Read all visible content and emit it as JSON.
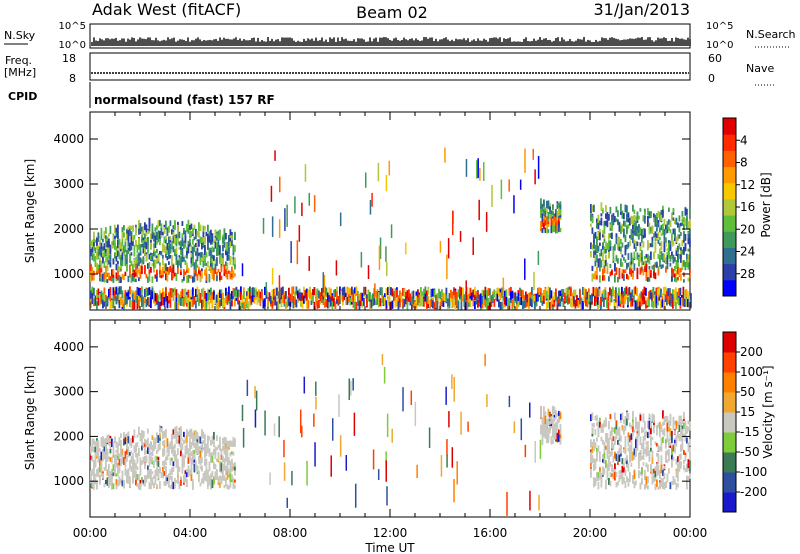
{
  "header": {
    "station": "Adak West (fitACF)",
    "beam": "Beam 02",
    "date": "31/Jan/2013"
  },
  "top_panels": {
    "nsky_label": "N.Sky",
    "nsearch_label": "N.Search",
    "freq_label_1": "Freq.",
    "freq_label_2": "[MHz]",
    "nave_label": "Nave",
    "cpid_label": "CPID",
    "cpid_value": "normalsound (fast) 157 RF",
    "noise_ticks_left": [
      "10^5",
      "10^0"
    ],
    "noise_ticks_right": [
      "10^5",
      "10^0"
    ],
    "freq_ticks": [
      "18",
      "8"
    ],
    "nave_ticks": [
      "60",
      "0"
    ]
  },
  "chart_data": [
    {
      "type": "heatmap",
      "quantity": "power",
      "ylabel": "Slant Range [km]",
      "ylim": [
        200,
        4600
      ],
      "yticks": [
        1000,
        2000,
        3000,
        4000
      ],
      "xlabel": "Time UT",
      "xlim": [
        "00:00",
        "24:00"
      ],
      "xticks": [
        "00:00",
        "04:00",
        "08:00",
        "12:00",
        "16:00",
        "20:00",
        "00:00"
      ],
      "colorbar": {
        "label": "Power [dB]",
        "ticks": [
          "4",
          "8",
          "12",
          "16",
          "20",
          "24",
          "28"
        ],
        "range": [
          0,
          30
        ],
        "colors": [
          "#0000ff",
          "#2a3fa8",
          "#2f6f8f",
          "#3f9a5a",
          "#5ebf3c",
          "#b0c83a",
          "#f5c800",
          "#ff9a00",
          "#ff6000",
          "#ff2a00",
          "#e00000"
        ]
      },
      "echo_regions": [
        {
          "t_start": 0.0,
          "t_end": 5.8,
          "range_start": 800,
          "range_end": 2300,
          "note": "strong band near 900-1100 km"
        },
        {
          "t_start": 18.0,
          "t_end": 18.8,
          "range_start": 1900,
          "range_end": 2500
        },
        {
          "t_start": 20.0,
          "t_end": 24.0,
          "range_start": 800,
          "range_end": 2400,
          "note": "strong band near 850-1000 km"
        },
        {
          "t_start": 0.0,
          "t_end": 24.0,
          "range_start": 200,
          "range_end": 550,
          "note": "near-range ground scatter"
        }
      ]
    },
    {
      "type": "heatmap",
      "quantity": "velocity",
      "ylabel": "Slant Range [km]",
      "ylim": [
        200,
        4600
      ],
      "yticks": [
        1000,
        2000,
        3000,
        4000
      ],
      "xlabel": "Time UT",
      "xlim": [
        "00:00",
        "24:00"
      ],
      "xticks": [
        "00:00",
        "04:00",
        "08:00",
        "12:00",
        "16:00",
        "20:00",
        "00:00"
      ],
      "colorbar": {
        "label": "Velocity [m s⁻¹]",
        "ticks": [
          "200",
          "100",
          "50",
          "15",
          "-15",
          "-50",
          "-100",
          "-200"
        ],
        "range": [
          -250,
          250
        ],
        "colors": [
          "#1a1acc",
          "#2e4fa0",
          "#3a7a55",
          "#7fcc3a",
          "#c8c8c0",
          "#f0a830",
          "#ff8000",
          "#ff4000",
          "#dd0000"
        ]
      },
      "echo_regions": [
        {
          "t_start": 0.0,
          "t_end": 5.8,
          "range_start": 800,
          "range_end": 2300,
          "note": "mostly ground scatter (grey)"
        },
        {
          "t_start": 18.0,
          "t_end": 18.8,
          "range_start": 1800,
          "range_end": 2500
        },
        {
          "t_start": 20.0,
          "t_end": 24.0,
          "range_start": 800,
          "range_end": 2400
        }
      ]
    }
  ]
}
